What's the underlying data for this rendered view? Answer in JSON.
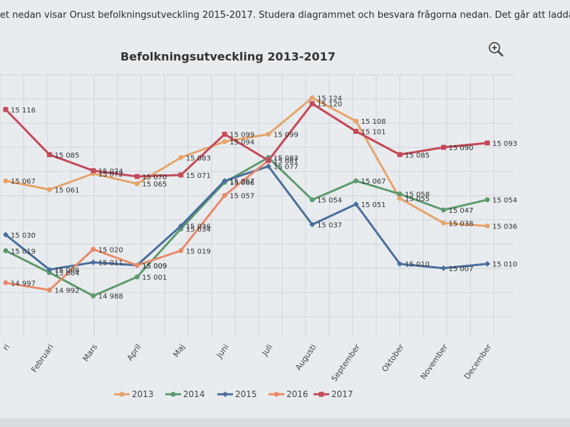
{
  "intro_text": "et nedan visar Orust befolkningsutveckling 2015-2017. Studera diagrammet och besvara frågorna nedan. Det går att ladda hem diagram",
  "zoom_icon": "zoom-in-icon",
  "colors": {
    "2013": "#e5a46a",
    "2014": "#5e9a6e",
    "2015": "#4a6f9c",
    "2016": "#e88a6a",
    "2017": "#c44a5a"
  },
  "chart_data": {
    "type": "line",
    "title": "Befolkningsutveckling 2013-2017",
    "categories": [
      "Januari",
      "Februari",
      "Mars",
      "April",
      "Maj",
      "Juni",
      "Juli",
      "Augusti",
      "September",
      "Oktober",
      "November",
      "December"
    ],
    "tick_labels": [
      "ri",
      "Februari",
      "Mars",
      "April",
      "Maj",
      "Juni",
      "Juli",
      "Augusti",
      "September",
      "Oktober",
      "November",
      "December"
    ],
    "ylim": [
      14960,
      15135
    ],
    "grid": true,
    "legend_position": "bottom",
    "series": [
      {
        "name": "2013",
        "values": [
          15067,
          15061,
          15072,
          15065,
          15083,
          15094,
          15099,
          15124,
          15108,
          15055,
          15038,
          15036
        ],
        "labels": [
          "15 067",
          "15 061",
          "15 072",
          "15 065",
          "15 083",
          "15 094",
          "15 099",
          "15 124",
          "15 108",
          "15 055",
          "15 038",
          "15 036"
        ]
      },
      {
        "name": "2014",
        "values": [
          15019,
          15004,
          14988,
          15001,
          15034,
          15066,
          15083,
          15054,
          15067,
          15058,
          15047,
          15054
        ],
        "labels": [
          "15 019",
          "15 004",
          "14 988",
          "15 001",
          "15 034",
          "15 066",
          "15 083",
          "15 054",
          "15 067",
          "15 058",
          "15 047",
          "15 054"
        ]
      },
      {
        "name": "2015",
        "values": [
          15030,
          15006,
          15011,
          15009,
          15036,
          15067,
          15077,
          15037,
          15051,
          15010,
          15007,
          15010
        ],
        "labels": [
          "15 030",
          "15 006",
          "15 011",
          "15 009",
          "15 036",
          "15 067",
          "15 077",
          "15 037",
          "15 051",
          "15 010",
          "15 007",
          "15 010"
        ]
      },
      {
        "name": "2016",
        "values": [
          14997,
          14992,
          15020,
          15009,
          15019,
          15057,
          15081,
          15120,
          15101,
          15085,
          15090,
          15093
        ],
        "labels": [
          "14 997",
          "14 992",
          "15 020",
          "15 009",
          "15 019",
          "15 057",
          "15 081",
          "",
          "",
          "",
          "",
          ""
        ]
      },
      {
        "name": "2017",
        "values": [
          15116,
          15085,
          15074,
          15070,
          15071,
          15099,
          15081,
          15120,
          15101,
          15085,
          15090,
          15093
        ],
        "labels": [
          "15 116",
          "15 085",
          "15 074",
          "15 070",
          "15 071",
          "15 099",
          "",
          "15 120",
          "15 101",
          "15 085",
          "15 090",
          "15 093"
        ]
      }
    ]
  }
}
